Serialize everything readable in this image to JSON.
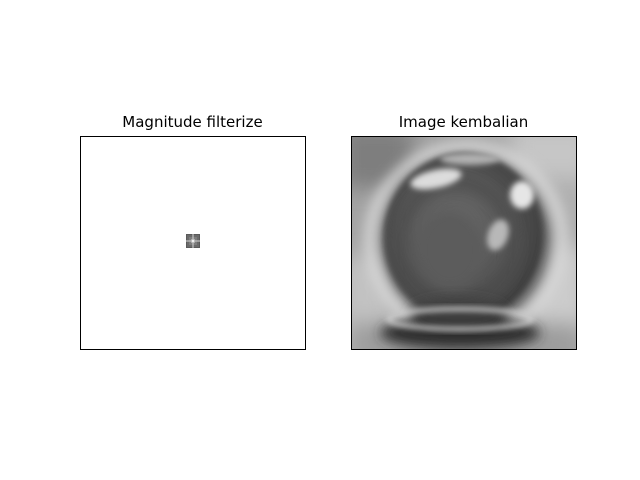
{
  "figure": {
    "panels": [
      {
        "title": "Magnitude filterize",
        "image": "filtered-magnitude-spectrum"
      },
      {
        "title": "Image kembalian",
        "image": "reconstructed-grayscale-sphere"
      }
    ]
  },
  "colors": {
    "background": "#ffffff",
    "frame": "#000000",
    "spectrum_block": "#555555",
    "spectrum_center": "#cfcfcf"
  }
}
